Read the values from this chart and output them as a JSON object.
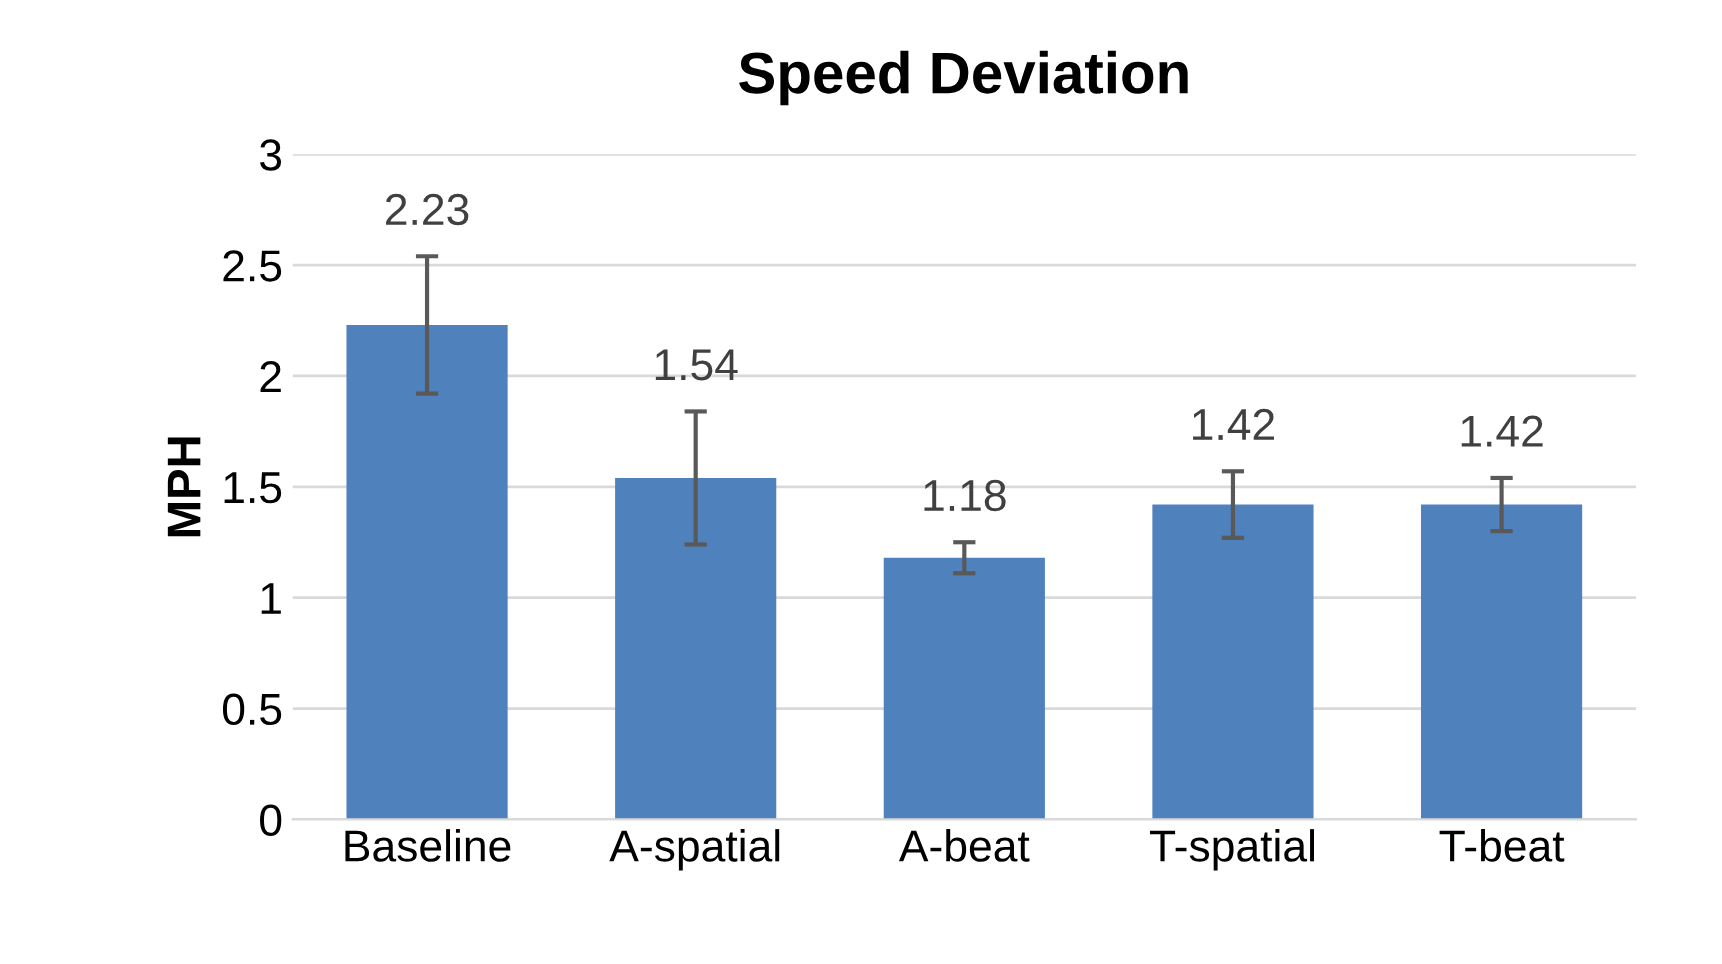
{
  "chart_data": {
    "type": "bar",
    "title": "Speed Deviation",
    "ylabel": "MPH",
    "categories": [
      "Baseline",
      "A-spatial",
      "A-beat",
      "T-spatial",
      "T-beat"
    ],
    "values": [
      2.23,
      1.54,
      1.18,
      1.42,
      1.42
    ],
    "errors": [
      0.31,
      0.3,
      0.07,
      0.15,
      0.12
    ],
    "color": "#4f81bd",
    "ylim": [
      0,
      3
    ],
    "yticks": [
      0,
      0.5,
      1,
      1.5,
      2,
      2.5,
      3
    ],
    "grid": "y",
    "data_labels": true
  }
}
